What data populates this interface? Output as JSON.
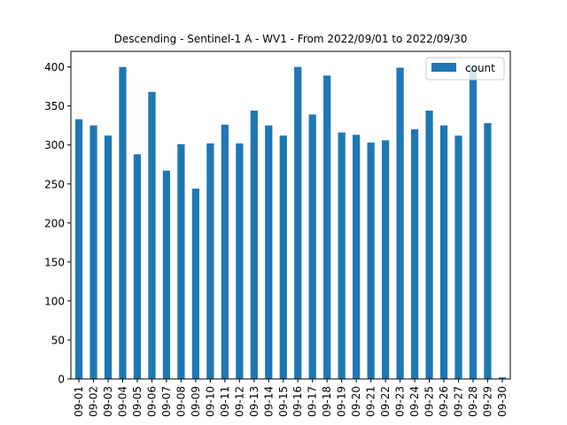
{
  "chart_data": {
    "type": "bar",
    "title": "Descending - Sentinel-1 A - WV1 - From 2022/09/01 to 2022/09/30",
    "xlabel": "",
    "ylabel": "",
    "categories": [
      "09-01",
      "09-02",
      "09-03",
      "09-04",
      "09-05",
      "09-06",
      "09-07",
      "09-08",
      "09-09",
      "09-10",
      "09-11",
      "09-12",
      "09-13",
      "09-14",
      "09-15",
      "09-16",
      "09-17",
      "09-18",
      "09-19",
      "09-20",
      "09-21",
      "09-22",
      "09-23",
      "09-24",
      "09-25",
      "09-26",
      "09-27",
      "09-28",
      "09-29",
      "09-30"
    ],
    "series": [
      {
        "name": "count",
        "color": "#1f77b4",
        "values": [
          333,
          325,
          312,
          400,
          288,
          368,
          267,
          301,
          244,
          302,
          326,
          302,
          344,
          325,
          312,
          400,
          339,
          389,
          316,
          313,
          303,
          306,
          399,
          320,
          344,
          325,
          312,
          400,
          328,
          2
        ]
      }
    ],
    "ylim": [
      0,
      420
    ],
    "yticks": [
      0,
      50,
      100,
      150,
      200,
      250,
      300,
      350,
      400
    ],
    "grid": false,
    "legend": {
      "position": "top-right",
      "entries": [
        "count"
      ]
    }
  }
}
